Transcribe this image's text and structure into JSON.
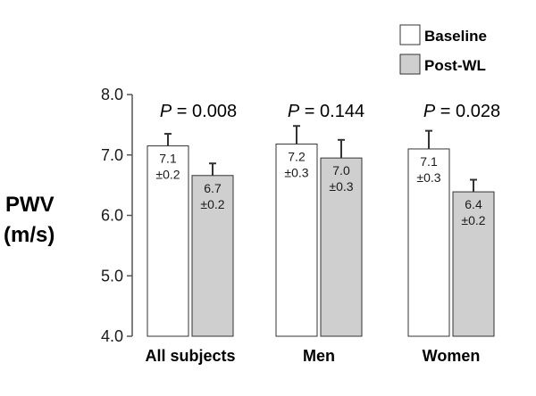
{
  "chart_data": {
    "type": "bar",
    "categories": [
      "All subjects",
      "Men",
      "Women"
    ],
    "series": [
      {
        "name": "Baseline",
        "values": [
          7.15,
          7.18,
          7.1
        ],
        "errors": [
          0.2,
          0.3,
          0.3
        ],
        "color": "#ffffff",
        "labels": [
          [
            "7.1",
            "±0.2"
          ],
          [
            "7.2",
            "±0.3"
          ],
          [
            "7.1",
            "±0.3"
          ]
        ]
      },
      {
        "name": "Post-WL",
        "values": [
          6.66,
          6.95,
          6.39
        ],
        "errors": [
          0.2,
          0.3,
          0.2
        ],
        "color": "#cfcfcf",
        "labels": [
          [
            "6.7",
            "±0.2"
          ],
          [
            "7.0",
            "±0.3"
          ],
          [
            "6.4",
            "±0.2"
          ]
        ]
      }
    ],
    "ylabel_line1": "PWV",
    "ylabel_line2": "(m/s)",
    "ylim": [
      4.0,
      8.0
    ],
    "yticks": [
      "4.0",
      "5.0",
      "6.0",
      "7.0",
      "8.0"
    ],
    "p_values": [
      {
        "prefix": "P",
        "text": " = 0.008"
      },
      {
        "prefix": "P",
        "text": " = 0.144"
      },
      {
        "prefix": "P",
        "text": " = 0.028"
      }
    ],
    "legend_position": "top-right",
    "grid": false
  }
}
